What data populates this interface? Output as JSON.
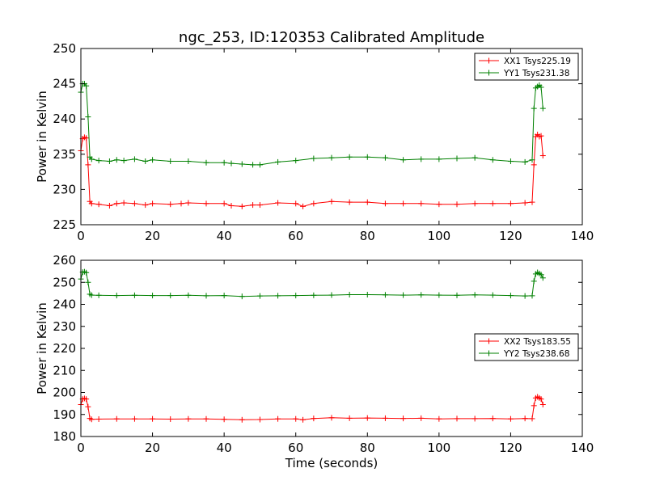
{
  "figure_title": "ngc_253, ID:120353 Calibrated Amplitude",
  "chart_data": [
    {
      "type": "line",
      "title": "ngc_253, ID:120353 Calibrated Amplitude",
      "xlabel": "",
      "ylabel": "Power in Kelvin",
      "xlim": [
        0,
        140
      ],
      "ylim": [
        225,
        250
      ],
      "xticks": [
        0,
        20,
        40,
        60,
        80,
        100,
        120,
        140
      ],
      "yticks": [
        225,
        230,
        235,
        240,
        245,
        250
      ],
      "grid": false,
      "legend_position": "top-right",
      "marker": "plus",
      "series": [
        {
          "name": "XX1 Tsys225.19",
          "color": "#ff0000",
          "x": [
            0,
            0.5,
            1,
            1.5,
            2,
            2.5,
            3,
            5,
            8,
            10,
            12,
            15,
            18,
            20,
            25,
            28,
            30,
            35,
            40,
            42,
            45,
            48,
            50,
            55,
            60,
            62,
            65,
            70,
            75,
            80,
            85,
            90,
            95,
            100,
            105,
            110,
            115,
            120,
            124,
            126,
            126.5,
            127,
            127.5,
            128,
            128.5,
            129
          ],
          "y": [
            235.5,
            237.2,
            237.4,
            237.3,
            233.5,
            228.3,
            228.0,
            227.9,
            227.7,
            228.0,
            228.1,
            228.0,
            227.8,
            228.0,
            227.9,
            228.0,
            228.1,
            228.0,
            228.0,
            227.7,
            227.6,
            227.8,
            227.8,
            228.1,
            228.0,
            227.6,
            228.0,
            228.3,
            228.2,
            228.2,
            228.0,
            228.0,
            228.0,
            227.9,
            227.9,
            228.0,
            228.0,
            228.0,
            228.1,
            228.2,
            233.5,
            237.5,
            237.8,
            237.5,
            237.6,
            234.8
          ]
        },
        {
          "name": "YY1 Tsys231.38",
          "color": "#008000",
          "x": [
            0,
            0.5,
            1,
            1.5,
            2,
            2.5,
            3,
            5,
            8,
            10,
            12,
            15,
            18,
            20,
            25,
            30,
            35,
            40,
            42,
            45,
            48,
            50,
            55,
            60,
            65,
            70,
            75,
            80,
            85,
            90,
            95,
            100,
            105,
            110,
            115,
            120,
            124,
            126,
            126.5,
            127,
            127.5,
            128,
            128.5,
            129
          ],
          "y": [
            243.8,
            245.0,
            245.0,
            244.7,
            240.3,
            234.6,
            234.3,
            234.1,
            234.0,
            234.2,
            234.1,
            234.3,
            234.0,
            234.2,
            234.0,
            234.0,
            233.8,
            233.8,
            233.7,
            233.6,
            233.5,
            233.5,
            233.9,
            234.1,
            234.4,
            234.5,
            234.6,
            234.6,
            234.5,
            234.2,
            234.3,
            234.3,
            234.4,
            234.5,
            234.2,
            234.0,
            233.9,
            234.2,
            241.5,
            244.4,
            244.6,
            244.8,
            244.5,
            241.5
          ]
        }
      ]
    },
    {
      "type": "line",
      "title": "",
      "xlabel": "Time (seconds)",
      "ylabel": "Power in Kelvin",
      "xlim": [
        0,
        140
      ],
      "ylim": [
        180,
        260
      ],
      "xticks": [
        0,
        20,
        40,
        60,
        80,
        100,
        120,
        140
      ],
      "yticks": [
        180,
        190,
        200,
        210,
        220,
        230,
        240,
        250,
        260
      ],
      "grid": false,
      "legend_position": "center-right",
      "marker": "plus",
      "series": [
        {
          "name": "XX2 Tsys183.55",
          "color": "#ff0000",
          "x": [
            0,
            0.5,
            1,
            1.5,
            2,
            2.5,
            3,
            5,
            10,
            15,
            20,
            25,
            30,
            35,
            40,
            45,
            50,
            55,
            60,
            62,
            65,
            70,
            75,
            80,
            85,
            90,
            95,
            100,
            105,
            110,
            115,
            120,
            124,
            126,
            126.5,
            127,
            127.5,
            128,
            128.5,
            129
          ],
          "y": [
            194.5,
            197.0,
            197.3,
            197.0,
            193.5,
            188.2,
            187.8,
            187.9,
            188.0,
            188.0,
            188.0,
            187.9,
            188.0,
            188.0,
            187.8,
            187.6,
            187.7,
            188.0,
            188.0,
            187.6,
            188.2,
            188.5,
            188.3,
            188.4,
            188.3,
            188.2,
            188.3,
            188.0,
            188.1,
            188.1,
            188.2,
            188.0,
            188.2,
            188.1,
            194.0,
            197.5,
            198.0,
            197.5,
            197.0,
            194.5
          ]
        },
        {
          "name": "YY2 Tsys238.68",
          "color": "#008000",
          "x": [
            0,
            0.5,
            1,
            1.5,
            2,
            2.5,
            3,
            5,
            10,
            15,
            20,
            25,
            30,
            35,
            40,
            45,
            50,
            55,
            60,
            65,
            70,
            75,
            80,
            85,
            90,
            95,
            100,
            105,
            110,
            115,
            120,
            124,
            126,
            126.5,
            127,
            127.5,
            128,
            128.5,
            129
          ],
          "y": [
            251.5,
            254.6,
            254.8,
            254.4,
            250.0,
            244.6,
            244.2,
            244.1,
            244.0,
            244.1,
            244.0,
            244.0,
            244.1,
            243.9,
            244.0,
            243.6,
            243.8,
            243.9,
            244.0,
            244.1,
            244.2,
            244.4,
            244.4,
            244.3,
            244.2,
            244.3,
            244.2,
            244.1,
            244.3,
            244.2,
            244.0,
            243.8,
            243.9,
            250.5,
            253.8,
            254.5,
            254.0,
            253.5,
            252.0
          ]
        }
      ]
    }
  ]
}
